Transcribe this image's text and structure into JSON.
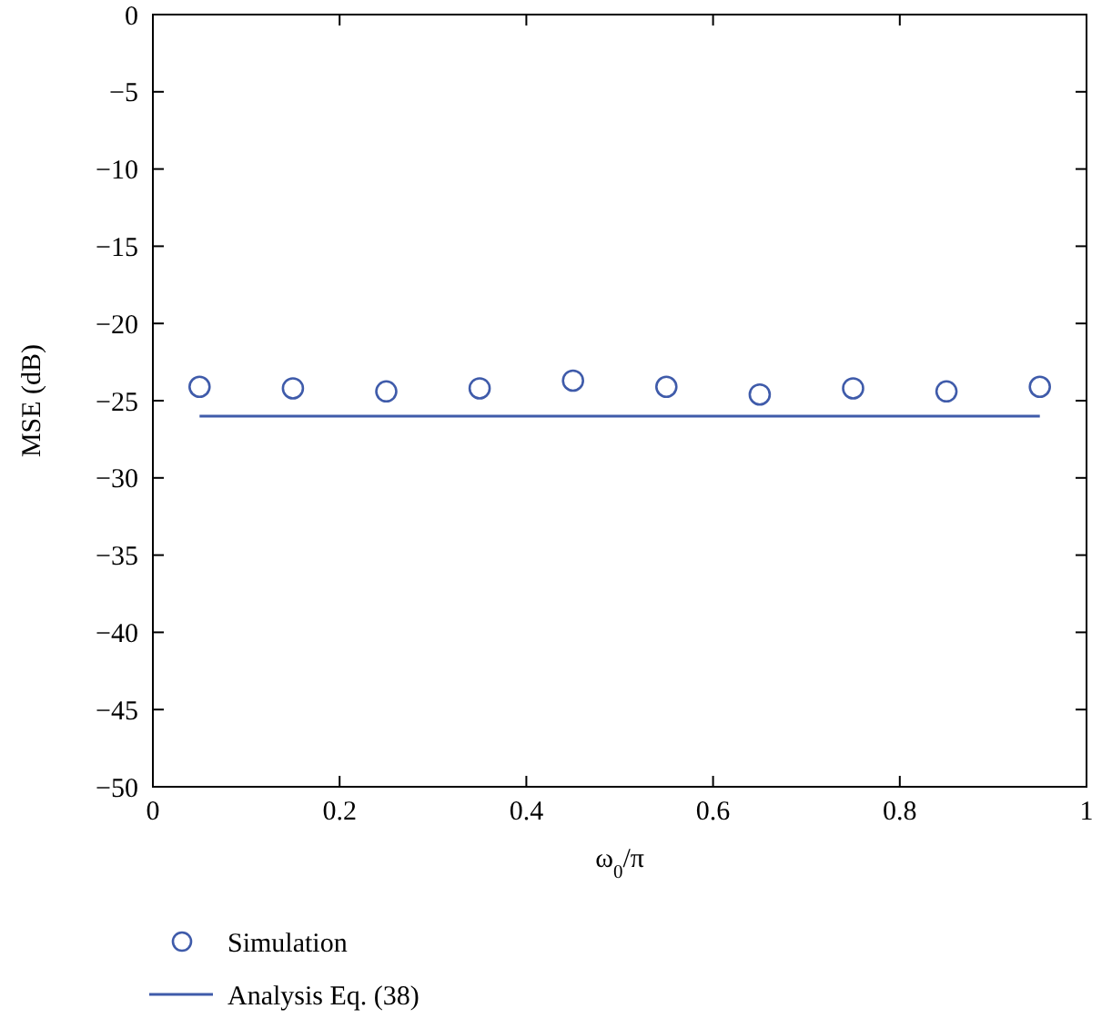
{
  "chart_data": {
    "type": "scatter",
    "xlabel": "ω$_{0}$/π",
    "ylabel": "MSE (dB)",
    "xlim": [
      0,
      1
    ],
    "xticks": [
      0,
      0.2,
      0.4,
      0.6,
      0.8,
      1
    ],
    "ylim": [
      -50,
      0
    ],
    "yticks": [
      -50,
      -45,
      -40,
      -35,
      -30,
      -25,
      -20,
      -15,
      -10,
      -5,
      0
    ],
    "legend": "bottom",
    "series": [
      {
        "name": "Simulation",
        "marker": "circle",
        "color": "#3f5baa",
        "x": [
          0.05,
          0.15,
          0.25,
          0.35,
          0.45,
          0.55,
          0.65,
          0.75,
          0.85,
          0.95
        ],
        "values": [
          -24.1,
          -24.2,
          -24.4,
          -24.2,
          -23.7,
          -24.1,
          -24.6,
          -24.2,
          -24.4,
          -24.1
        ]
      },
      {
        "name": "Analysis Eq. (38)",
        "type": "line",
        "color": "#3f5baa",
        "x": [
          0.05,
          0.95
        ],
        "values": [
          -26,
          -26
        ]
      }
    ]
  }
}
